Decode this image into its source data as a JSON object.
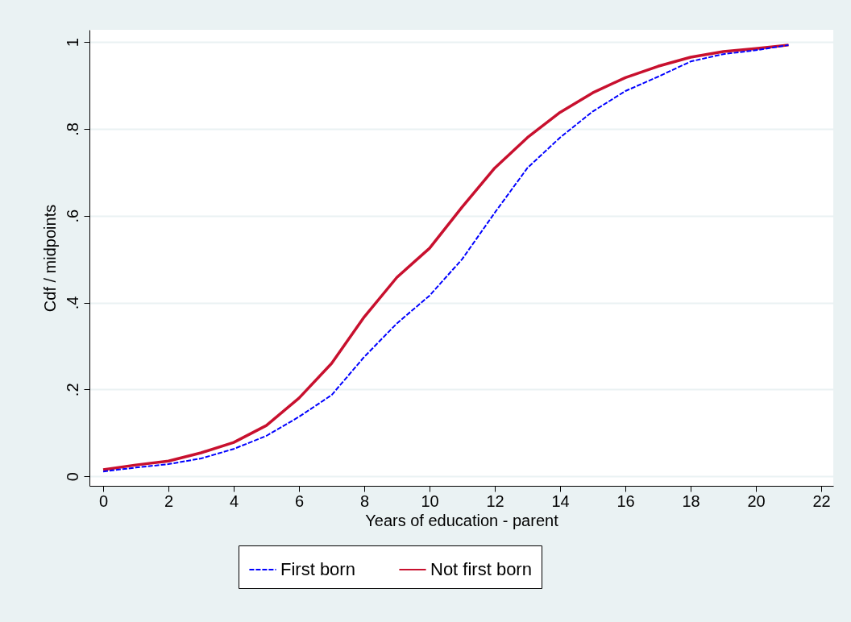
{
  "chart_data": {
    "type": "line",
    "xlabel": "Years of education - parent",
    "ylabel": "Cdf / midpoints",
    "x": [
      0,
      1,
      2,
      3,
      4,
      5,
      6,
      7,
      8,
      9,
      10,
      11,
      12,
      13,
      14,
      15,
      16,
      17,
      18,
      19,
      20,
      21
    ],
    "series": [
      {
        "name": "First born",
        "color": "#0000ff",
        "line_style": "dashed",
        "values": [
          0.011,
          0.02,
          0.028,
          0.041,
          0.063,
          0.093,
          0.137,
          0.187,
          0.275,
          0.352,
          0.416,
          0.5,
          0.607,
          0.71,
          0.78,
          0.84,
          0.887,
          0.92,
          0.955,
          0.972,
          0.981,
          0.993
        ]
      },
      {
        "name": "Not first born",
        "color": "#c8102e",
        "line_style": "solid",
        "values": [
          0.015,
          0.026,
          0.035,
          0.054,
          0.078,
          0.117,
          0.18,
          0.26,
          0.367,
          0.458,
          0.525,
          0.62,
          0.71,
          0.78,
          0.838,
          0.883,
          0.918,
          0.944,
          0.965,
          0.978,
          0.985,
          0.993
        ]
      }
    ],
    "xlim": [
      -0.42,
      22.37
    ],
    "ylim": [
      -0.022,
      1.028
    ],
    "xticks": [
      0,
      2,
      4,
      6,
      8,
      10,
      12,
      14,
      16,
      18,
      20,
      22
    ],
    "yticks": [
      0,
      {
        "value": 0.2,
        "label": ".2"
      },
      {
        "value": 0.4,
        "label": ".4"
      },
      {
        "value": 0.6,
        "label": ".6"
      },
      {
        "value": 0.8,
        "label": ".8"
      },
      1
    ],
    "grid": "y",
    "legend": "bottom",
    "marker": "none"
  }
}
